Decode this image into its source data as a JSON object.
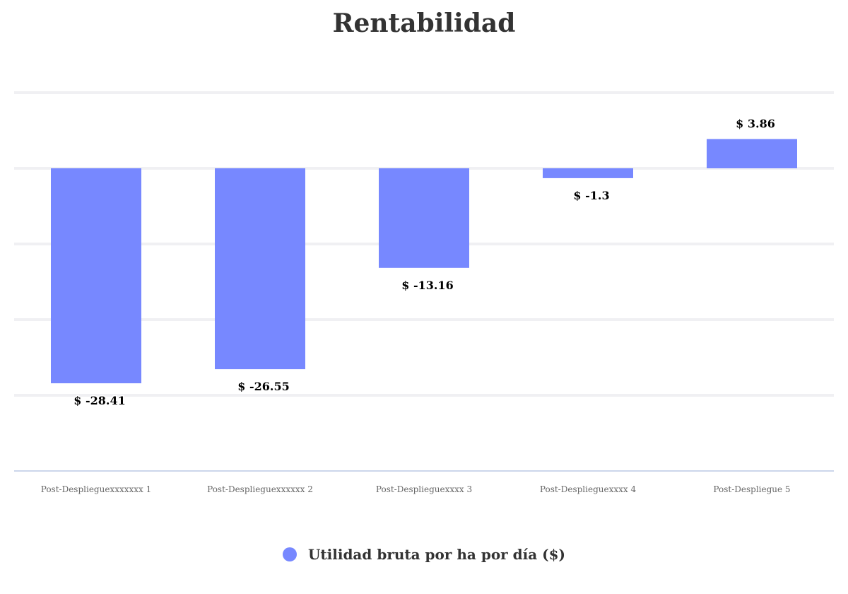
{
  "chart_data": {
    "type": "bar",
    "title": "Rentabilidad",
    "categories": [
      "Post-Desplieguexxxxxxx 1",
      "Post-Desplieguexxxxxx 2",
      "Post-Desplieguexxxx 3",
      "Post-Desplieguexxxx 4",
      "Post-Despliegue 5"
    ],
    "series": [
      {
        "name": "Utilidad bruta por ha por día ($)",
        "values": [
          -28.41,
          -26.55,
          -13.16,
          -1.3,
          3.86
        ],
        "data_labels": [
          "$ -28.41",
          "$ -26.55",
          "$ -13.16",
          "$ -1.3",
          "$ 3.86"
        ],
        "color": "#7788ff"
      }
    ],
    "ylim": [
      -40,
      10
    ],
    "grid": true,
    "legend_position": "bottom-center"
  }
}
